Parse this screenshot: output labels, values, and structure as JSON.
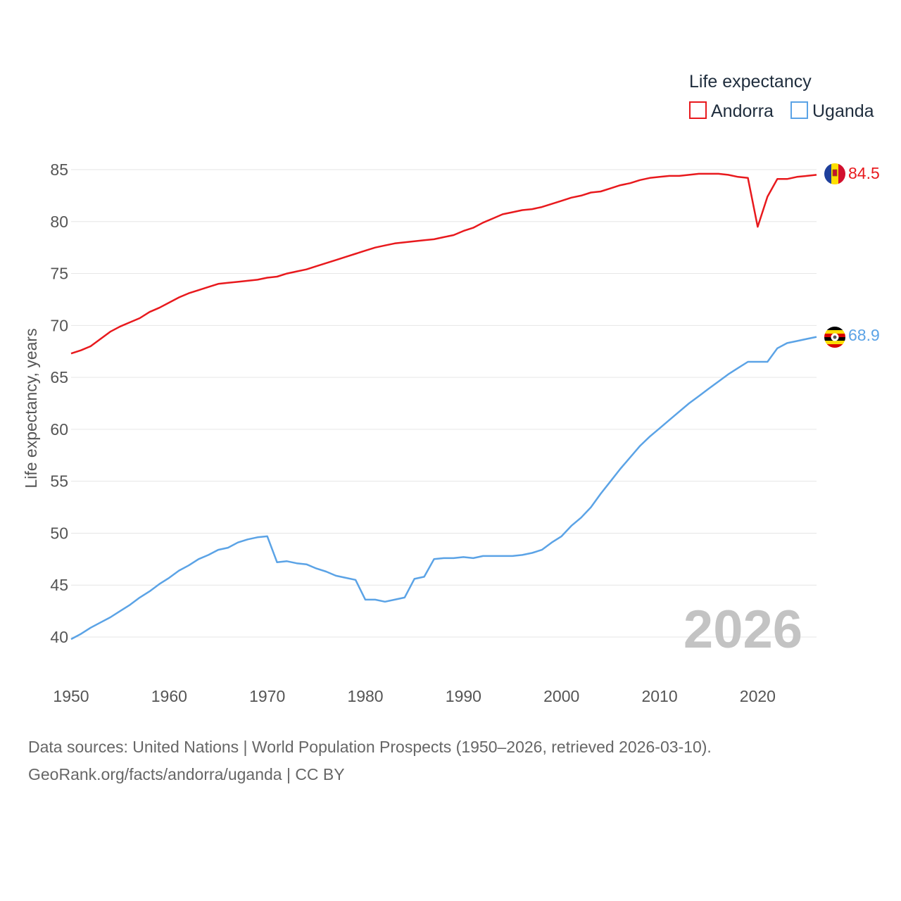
{
  "chart_data": {
    "type": "line",
    "legend_title": "Life expectancy",
    "ylabel": "Life expectancy, years",
    "xlabel": "",
    "xlim": [
      1950,
      2026
    ],
    "ylim": [
      37.5,
      87
    ],
    "x_ticks": [
      1950,
      1960,
      1970,
      1980,
      1990,
      2000,
      2010,
      2020
    ],
    "y_ticks": [
      40,
      45,
      50,
      55,
      60,
      65,
      70,
      75,
      80,
      85
    ],
    "grid": true,
    "legend_position": "top-right",
    "year_label": "2026",
    "x": [
      1950,
      1951,
      1952,
      1953,
      1954,
      1955,
      1956,
      1957,
      1958,
      1959,
      1960,
      1961,
      1962,
      1963,
      1964,
      1965,
      1966,
      1967,
      1968,
      1969,
      1970,
      1971,
      1972,
      1973,
      1974,
      1975,
      1976,
      1977,
      1978,
      1979,
      1980,
      1981,
      1982,
      1983,
      1984,
      1985,
      1986,
      1987,
      1988,
      1989,
      1990,
      1991,
      1992,
      1993,
      1994,
      1995,
      1996,
      1997,
      1998,
      1999,
      2000,
      2001,
      2002,
      2003,
      2004,
      2005,
      2006,
      2007,
      2008,
      2009,
      2010,
      2011,
      2012,
      2013,
      2014,
      2015,
      2016,
      2017,
      2018,
      2019,
      2020,
      2021,
      2022,
      2023,
      2024,
      2025,
      2026
    ],
    "series": [
      {
        "name": "Andorra",
        "color": "#e8191d",
        "end_label": "84.5",
        "flag": "andorra-flag-icon",
        "values": [
          67.3,
          67.6,
          68.0,
          68.7,
          69.4,
          69.9,
          70.3,
          70.7,
          71.3,
          71.7,
          72.2,
          72.7,
          73.1,
          73.4,
          73.7,
          74.0,
          74.1,
          74.2,
          74.3,
          74.4,
          74.6,
          74.7,
          75.0,
          75.2,
          75.4,
          75.7,
          76.0,
          76.3,
          76.6,
          76.9,
          77.2,
          77.5,
          77.7,
          77.9,
          78.0,
          78.1,
          78.2,
          78.3,
          78.5,
          78.7,
          79.1,
          79.4,
          79.9,
          80.3,
          80.7,
          80.9,
          81.1,
          81.2,
          81.4,
          81.7,
          82.0,
          82.3,
          82.5,
          82.8,
          82.9,
          83.2,
          83.5,
          83.7,
          84.0,
          84.2,
          84.3,
          84.4,
          84.4,
          84.5,
          84.6,
          84.6,
          84.6,
          84.5,
          84.3,
          84.2,
          79.5,
          82.4,
          84.1,
          84.1,
          84.3,
          84.4,
          84.5
        ]
      },
      {
        "name": "Uganda",
        "color": "#5ba3e6",
        "end_label": "68.9",
        "flag": "uganda-flag-icon",
        "values": [
          39.8,
          40.3,
          40.9,
          41.4,
          41.9,
          42.5,
          43.1,
          43.8,
          44.4,
          45.1,
          45.7,
          46.4,
          46.9,
          47.5,
          47.9,
          48.4,
          48.6,
          49.1,
          49.4,
          49.6,
          49.7,
          47.2,
          47.3,
          47.1,
          47.0,
          46.6,
          46.3,
          45.9,
          45.7,
          45.5,
          43.6,
          43.6,
          43.4,
          43.6,
          43.8,
          45.6,
          45.8,
          47.5,
          47.6,
          47.6,
          47.7,
          47.6,
          47.8,
          47.8,
          47.8,
          47.8,
          47.9,
          48.1,
          48.4,
          49.1,
          49.7,
          50.7,
          51.5,
          52.5,
          53.8,
          55.0,
          56.2,
          57.3,
          58.4,
          59.3,
          60.1,
          60.9,
          61.7,
          62.5,
          63.2,
          63.9,
          64.6,
          65.3,
          65.9,
          66.5,
          66.5,
          66.5,
          67.8,
          68.3,
          68.5,
          68.7,
          68.9
        ]
      }
    ]
  },
  "footer": {
    "source_line": "Data sources: United Nations | World Population Prospects (1950–2026, retrieved 2026-03-10).",
    "credit_line": "GeoRank.org/facts/andorra/uganda | CC BY"
  }
}
